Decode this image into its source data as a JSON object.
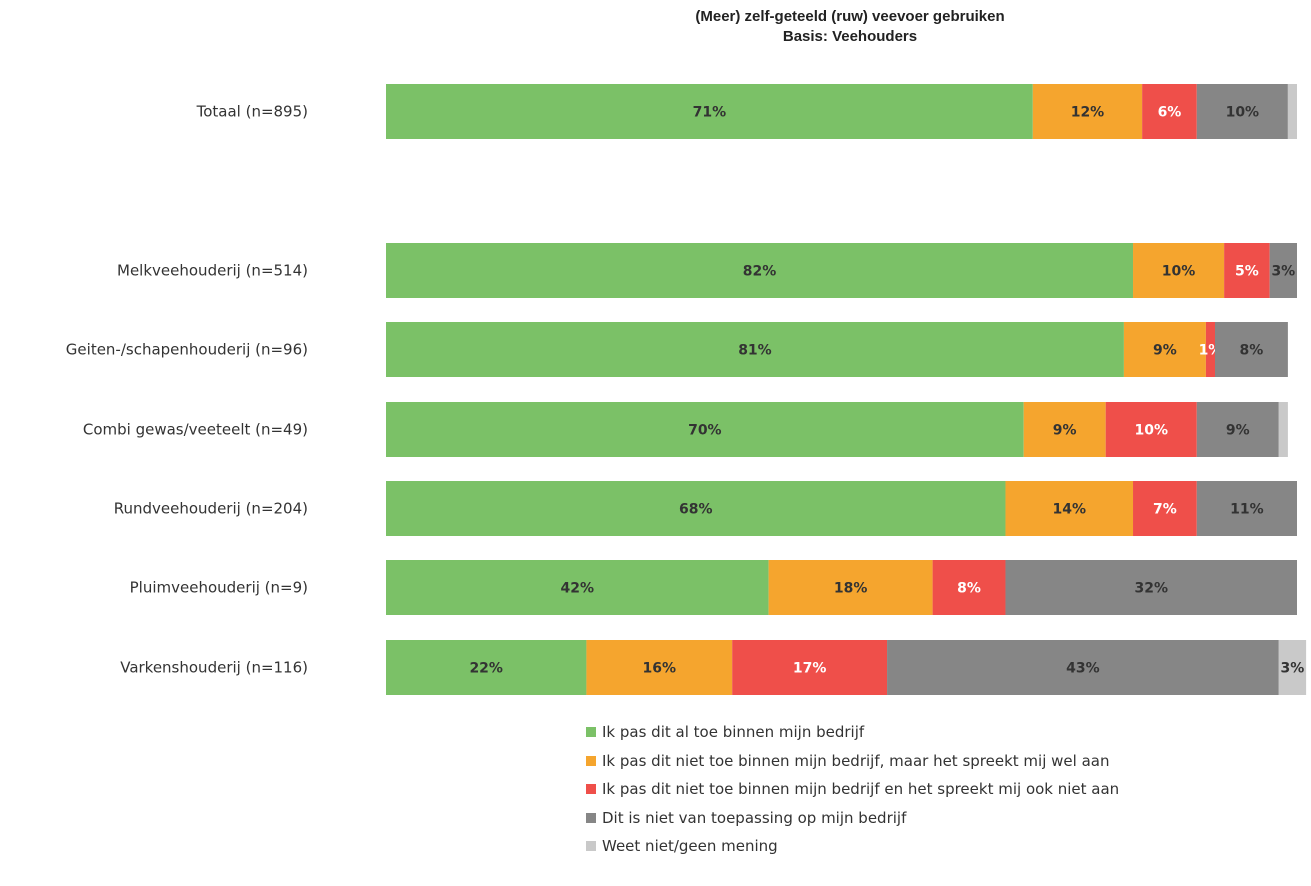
{
  "chart_data": {
    "type": "bar",
    "orientation": "horizontal",
    "stacked": true,
    "title": "(Meer) zelf-geteeld (ruw) veevoer gebruiken",
    "subtitle": "Basis: Veehouders",
    "categories": [
      "Totaal (n=895)",
      "Melkveehouderij (n=514)",
      "Geiten-/schapenhouderij (n=96)",
      "Combi gewas/veeteelt (n=49)",
      "Rundveehouderij (n=204)",
      "Pluimveehouderij (n=9)",
      "Varkenshouderij (n=116)"
    ],
    "series": [
      {
        "name": "Ik pas dit al toe binnen mijn bedrijf",
        "color": "#7bc167",
        "values": [
          71,
          82,
          81,
          70,
          68,
          42,
          22
        ],
        "labels": [
          "71%",
          "82%",
          "81%",
          "70%",
          "68%",
          "42%",
          "22%"
        ]
      },
      {
        "name": "Ik pas dit niet toe binnen mijn bedrijf, maar het spreekt mij wel aan",
        "color": "#f5a52e",
        "values": [
          12,
          10,
          9,
          9,
          14,
          18,
          16
        ],
        "labels": [
          "12%",
          "10%",
          "9%",
          "9%",
          "14%",
          "18%",
          "16%"
        ]
      },
      {
        "name": "Ik pas dit niet toe binnen mijn bedrijf en het spreekt mij ook niet aan",
        "color": "#ef4f4a",
        "values": [
          6,
          5,
          1,
          10,
          7,
          8,
          17
        ],
        "labels": [
          "6%",
          "5%",
          "1%",
          "10%",
          "7%",
          "8%",
          "17%"
        ]
      },
      {
        "name": "Dit is niet van toepassing op mijn bedrijf",
        "color": "#868686",
        "values": [
          10,
          3,
          8,
          9,
          11,
          32,
          43
        ],
        "labels": [
          "10%",
          "3%",
          "8%",
          "9%",
          "11%",
          "32%",
          "43%"
        ]
      },
      {
        "name": "Weet niet/geen mening",
        "color": "#c9c9c9",
        "values": [
          1,
          0,
          0,
          1,
          0,
          0,
          3
        ],
        "labels": [
          "",
          "",
          "",
          "",
          "",
          "",
          "3%"
        ]
      }
    ],
    "xlim": [
      0,
      100
    ],
    "legend_position": "bottom",
    "grid": false
  }
}
